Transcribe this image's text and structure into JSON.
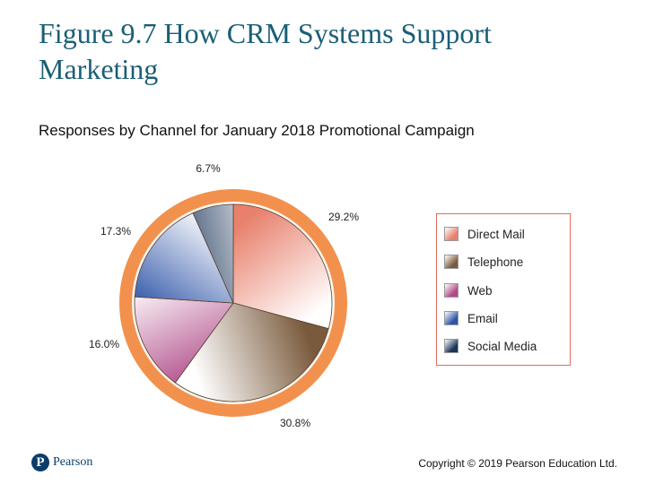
{
  "header": {
    "title": "Figure 9.7 How CRM Systems Support Marketing",
    "subtitle": "Responses by Channel for January 2018 Promotional Campaign"
  },
  "chart_data": {
    "type": "pie",
    "title": "Responses by Channel for January 2018 Promotional Campaign",
    "categories": [
      "Direct Mail",
      "Telephone",
      "Web",
      "Email",
      "Social Media"
    ],
    "values": [
      29.2,
      30.8,
      16.0,
      17.3,
      6.7
    ],
    "labels": [
      "29.2%",
      "30.8%",
      "16.0%",
      "17.3%",
      "6.7%"
    ],
    "unit": "%",
    "legend": "right",
    "colors": [
      "#e8806c",
      "#7a5a3c",
      "#b04a88",
      "#2f55a8",
      "#1a3458"
    ]
  },
  "footer": {
    "logo_text": "Pearson",
    "logo_letter": "P",
    "copyright": "Copyright © 2019 Pearson Education Ltd."
  }
}
